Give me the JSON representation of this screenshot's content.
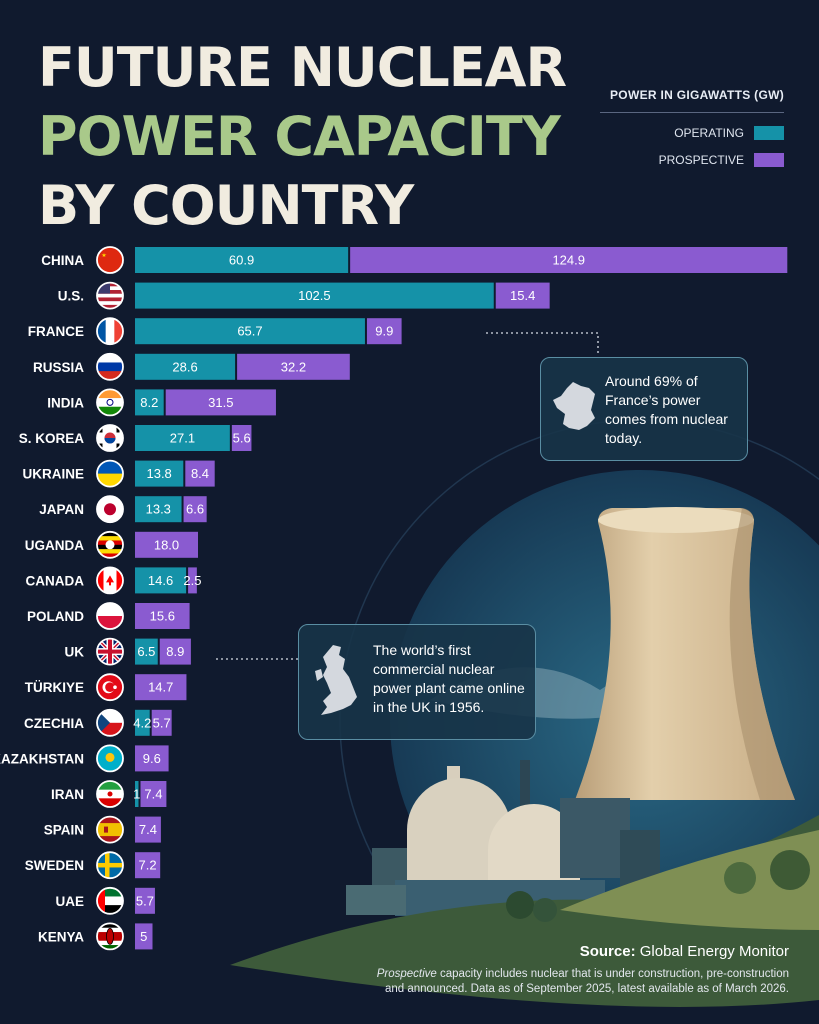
{
  "title": {
    "line1": "FUTURE NUCLEAR",
    "line2": "POWER CAPACITY",
    "line3": "BY COUNTRY"
  },
  "legend": {
    "title": "POWER IN GIGAWATTS (GW)",
    "operating": "OPERATING",
    "prospective": "PROSPECTIVE"
  },
  "colors": {
    "operating": "#1592a8",
    "prospective": "#8a5bd0",
    "background": "#101a2e",
    "title_accent": "#a9c98a"
  },
  "chart_data": {
    "type": "bar",
    "orientation": "horizontal",
    "stacked": true,
    "categories": [
      "CHINA",
      "U.S.",
      "FRANCE",
      "RUSSIA",
      "INDIA",
      "S. KOREA",
      "UKRAINE",
      "JAPAN",
      "UGANDA",
      "CANADA",
      "POLAND",
      "UK",
      "TÜRKIYE",
      "CZECHIA",
      "KAZAKHSTAN",
      "IRAN",
      "SPAIN",
      "SWEDEN",
      "UAE",
      "KENYA"
    ],
    "flags": [
      "china",
      "usa",
      "france",
      "russia",
      "india",
      "south-korea",
      "ukraine",
      "japan",
      "uganda",
      "canada",
      "poland",
      "uk",
      "turkiye",
      "czechia",
      "kazakhstan",
      "iran",
      "spain",
      "sweden",
      "uae",
      "kenya"
    ],
    "series": [
      {
        "name": "OPERATING",
        "values": [
          60.9,
          102.5,
          65.7,
          28.6,
          8.2,
          27.1,
          13.8,
          13.3,
          null,
          14.6,
          null,
          6.5,
          null,
          4.2,
          null,
          1,
          null,
          null,
          null,
          null
        ]
      },
      {
        "name": "PROSPECTIVE",
        "values": [
          124.9,
          15.4,
          9.9,
          32.2,
          31.5,
          5.6,
          8.4,
          6.6,
          18.0,
          2.5,
          15.6,
          8.9,
          14.7,
          5.7,
          9.6,
          7.4,
          7.4,
          7.2,
          5.7,
          5
        ]
      }
    ],
    "value_labels": {
      "OPERATING": [
        "60.9",
        "102.5",
        "65.7",
        "28.6",
        "8.2",
        "27.1",
        "13.8",
        "13.3",
        "",
        "14.6",
        "",
        "6.5",
        "",
        "4.2",
        "",
        "1",
        "",
        "",
        "",
        ""
      ],
      "PROSPECTIVE": [
        "124.9",
        "15.4",
        "9.9",
        "32.2",
        "31.5",
        "5.6",
        "8.4",
        "6.6",
        "18.0",
        "2.5",
        "15.6",
        "8.9",
        "14.7",
        "5.7",
        "9.6",
        "7.4",
        "7.4",
        "7.2",
        "5.7",
        "5"
      ]
    },
    "unit": "GW",
    "grid": false,
    "legend_position": "top-right"
  },
  "annotations": {
    "france": "Around 69% of France’s power comes from nuclear today.",
    "uk": "The world’s first commercial nuclear power plant came online in the UK in 1956."
  },
  "source": {
    "label": "Source:",
    "text": "Global Energy Monitor"
  },
  "footnote": {
    "lead": "Prospective",
    "text": "capacity includes nuclear that is under construction, pre-construction and announced. Data as of September 2025, latest available as of March 2026."
  }
}
